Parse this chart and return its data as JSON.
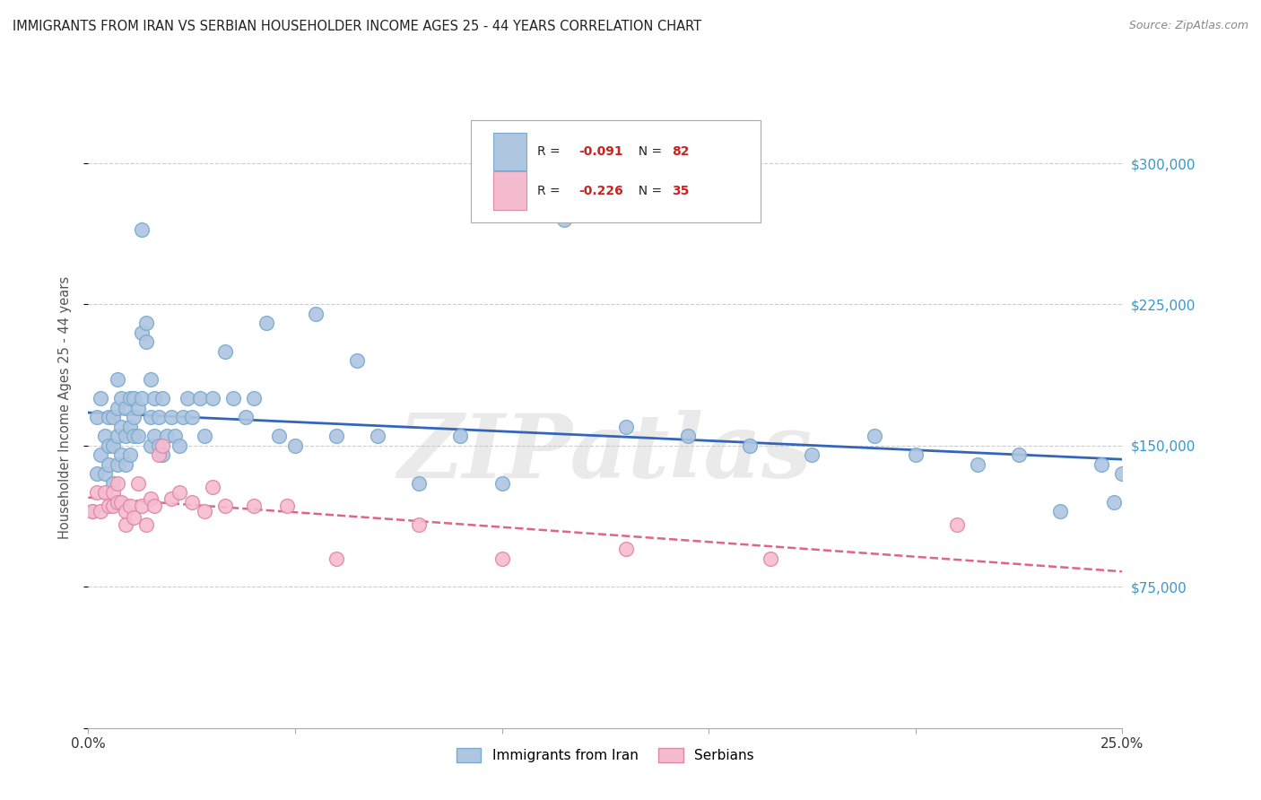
{
  "title": "IMMIGRANTS FROM IRAN VS SERBIAN HOUSEHOLDER INCOME AGES 25 - 44 YEARS CORRELATION CHART",
  "source": "Source: ZipAtlas.com",
  "ylabel": "Householder Income Ages 25 - 44 years",
  "yticks": [
    0,
    75000,
    150000,
    225000,
    300000
  ],
  "ytick_labels_right": [
    "",
    "$75,000",
    "$150,000",
    "$225,000",
    "$300,000"
  ],
  "xmin": 0.0,
  "xmax": 0.25,
  "ymin": 0,
  "ymax": 340000,
  "iran_color": "#aec6e0",
  "iran_edge_color": "#7aaacf",
  "serbian_color": "#f5bcd0",
  "serbian_edge_color": "#e088a8",
  "iran_R": -0.091,
  "iran_N": 82,
  "serbian_R": -0.226,
  "serbian_N": 35,
  "iran_line_color": "#3366bb",
  "serbian_line_color": "#dd6688",
  "watermark": "ZIPatlas",
  "legend_label_iran": "Immigrants from Iran",
  "legend_label_serbian": "Serbians",
  "iran_scatter_x": [
    0.001,
    0.002,
    0.002,
    0.003,
    0.003,
    0.004,
    0.004,
    0.005,
    0.005,
    0.005,
    0.006,
    0.006,
    0.006,
    0.007,
    0.007,
    0.007,
    0.007,
    0.008,
    0.008,
    0.008,
    0.009,
    0.009,
    0.009,
    0.01,
    0.01,
    0.01,
    0.011,
    0.011,
    0.011,
    0.012,
    0.012,
    0.013,
    0.013,
    0.013,
    0.014,
    0.014,
    0.015,
    0.015,
    0.015,
    0.016,
    0.016,
    0.017,
    0.017,
    0.018,
    0.018,
    0.019,
    0.02,
    0.021,
    0.022,
    0.023,
    0.024,
    0.025,
    0.027,
    0.028,
    0.03,
    0.033,
    0.035,
    0.038,
    0.04,
    0.043,
    0.046,
    0.05,
    0.055,
    0.06,
    0.065,
    0.07,
    0.08,
    0.09,
    0.1,
    0.115,
    0.13,
    0.145,
    0.16,
    0.175,
    0.19,
    0.2,
    0.215,
    0.225,
    0.235,
    0.245,
    0.248,
    0.25
  ],
  "iran_scatter_y": [
    115000,
    135000,
    165000,
    145000,
    175000,
    155000,
    135000,
    150000,
    165000,
    140000,
    130000,
    150000,
    165000,
    140000,
    155000,
    170000,
    185000,
    145000,
    160000,
    175000,
    140000,
    155000,
    170000,
    145000,
    160000,
    175000,
    155000,
    165000,
    175000,
    155000,
    170000,
    210000,
    265000,
    175000,
    205000,
    215000,
    150000,
    165000,
    185000,
    155000,
    175000,
    150000,
    165000,
    145000,
    175000,
    155000,
    165000,
    155000,
    150000,
    165000,
    175000,
    165000,
    175000,
    155000,
    175000,
    200000,
    175000,
    165000,
    175000,
    215000,
    155000,
    150000,
    220000,
    155000,
    195000,
    155000,
    130000,
    155000,
    130000,
    270000,
    160000,
    155000,
    150000,
    145000,
    155000,
    145000,
    140000,
    145000,
    115000,
    140000,
    120000,
    135000
  ],
  "serbian_scatter_x": [
    0.001,
    0.002,
    0.003,
    0.004,
    0.005,
    0.006,
    0.006,
    0.007,
    0.007,
    0.008,
    0.009,
    0.009,
    0.01,
    0.011,
    0.012,
    0.013,
    0.014,
    0.015,
    0.016,
    0.017,
    0.018,
    0.02,
    0.022,
    0.025,
    0.028,
    0.03,
    0.033,
    0.04,
    0.048,
    0.06,
    0.08,
    0.1,
    0.13,
    0.165,
    0.21
  ],
  "serbian_scatter_y": [
    115000,
    125000,
    115000,
    125000,
    118000,
    125000,
    118000,
    120000,
    130000,
    120000,
    115000,
    108000,
    118000,
    112000,
    130000,
    118000,
    108000,
    122000,
    118000,
    145000,
    150000,
    122000,
    125000,
    120000,
    115000,
    128000,
    118000,
    118000,
    118000,
    90000,
    108000,
    90000,
    95000,
    90000,
    108000
  ]
}
